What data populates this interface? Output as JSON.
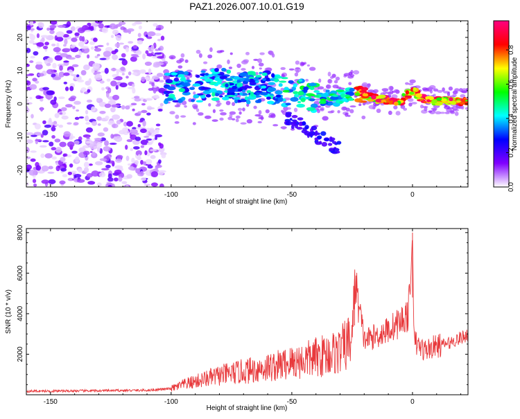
{
  "chart_data": [
    {
      "type": "heatmap",
      "title": "PAZ1.2026.007.10.01.G19",
      "xlabel": "Height of straight line (km)",
      "ylabel": "Frequency (Hz)",
      "xlim": [
        -160,
        23
      ],
      "ylim": [
        -25,
        25
      ],
      "xticks": [
        -150,
        -100,
        -50,
        0
      ],
      "xtick_labels": [
        "-150",
        "-100",
        "-50",
        "0"
      ],
      "yticks": [
        -20,
        -10,
        0,
        10,
        20
      ],
      "ytick_labels": [
        "-20",
        "-10",
        "0",
        "10",
        "20"
      ],
      "colorbar": {
        "label": "Normalized spectral amplitude",
        "range": [
          0,
          0.97
        ],
        "ticks": [
          0,
          0.2,
          0.4,
          0.6,
          0.8
        ],
        "tick_labels": [
          "0.0",
          "0.2",
          "0.4",
          "0.6",
          "0.8"
        ],
        "colormap": [
          "#ffffff",
          "#8000ff",
          "#0000ff",
          "#00ffff",
          "#00ff00",
          "#ffff00",
          "#ff0000",
          "#ff0080"
        ]
      },
      "ridge": [
        {
          "x": -102,
          "f": 5
        },
        {
          "x": -90,
          "f": 5
        },
        {
          "x": -80,
          "f": 6
        },
        {
          "x": -70,
          "f": 5
        },
        {
          "x": -60,
          "f": 5
        },
        {
          "x": -50,
          "f": 3
        },
        {
          "x": -40,
          "f": 2
        },
        {
          "x": -30,
          "f": 2
        },
        {
          "x": -25,
          "f": 3.5
        },
        {
          "x": -20,
          "f": 2.5
        },
        {
          "x": -15,
          "f": 1.5
        },
        {
          "x": -10,
          "f": 1
        },
        {
          "x": -5,
          "f": 1
        },
        {
          "x": 0,
          "f": 4
        },
        {
          "x": 5,
          "f": 1
        },
        {
          "x": 10,
          "f": 1
        },
        {
          "x": 15,
          "f": 1
        },
        {
          "x": 23,
          "f": 0.5
        }
      ]
    },
    {
      "type": "line",
      "xlabel": "Height of straight line (km)",
      "ylabel": "SNR (10 * v/v)",
      "xlim": [
        -160,
        23
      ],
      "ylim": [
        0,
        8200
      ],
      "xticks": [
        -150,
        -100,
        -50,
        0
      ],
      "xtick_labels": [
        "-150",
        "-100",
        "-50",
        "0"
      ],
      "yticks": [
        2000,
        4000,
        6000,
        8000
      ],
      "ytick_labels": [
        "2000",
        "4000",
        "6000",
        "8000"
      ],
      "color": "#e8393c",
      "series": [
        {
          "name": "SNR",
          "x": [
            -160,
            -150,
            -140,
            -130,
            -120,
            -110,
            -100,
            -95,
            -90,
            -85,
            -80,
            -75,
            -70,
            -65,
            -60,
            -55,
            -50,
            -45,
            -40,
            -35,
            -30,
            -28,
            -25,
            -24,
            -20,
            -15,
            -10,
            -5,
            -2,
            -1,
            0,
            0.5,
            1,
            2,
            5,
            10,
            15,
            20,
            23
          ],
          "values": [
            180,
            180,
            190,
            200,
            210,
            220,
            300,
            500,
            650,
            800,
            950,
            1050,
            1150,
            1250,
            1350,
            1450,
            1600,
            1700,
            1850,
            2000,
            2150,
            2400,
            2800,
            5700,
            2700,
            2900,
            3200,
            3600,
            3950,
            4800,
            8000,
            3500,
            2600,
            2450,
            2200,
            2400,
            2550,
            2800,
            3000
          ]
        }
      ]
    }
  ]
}
